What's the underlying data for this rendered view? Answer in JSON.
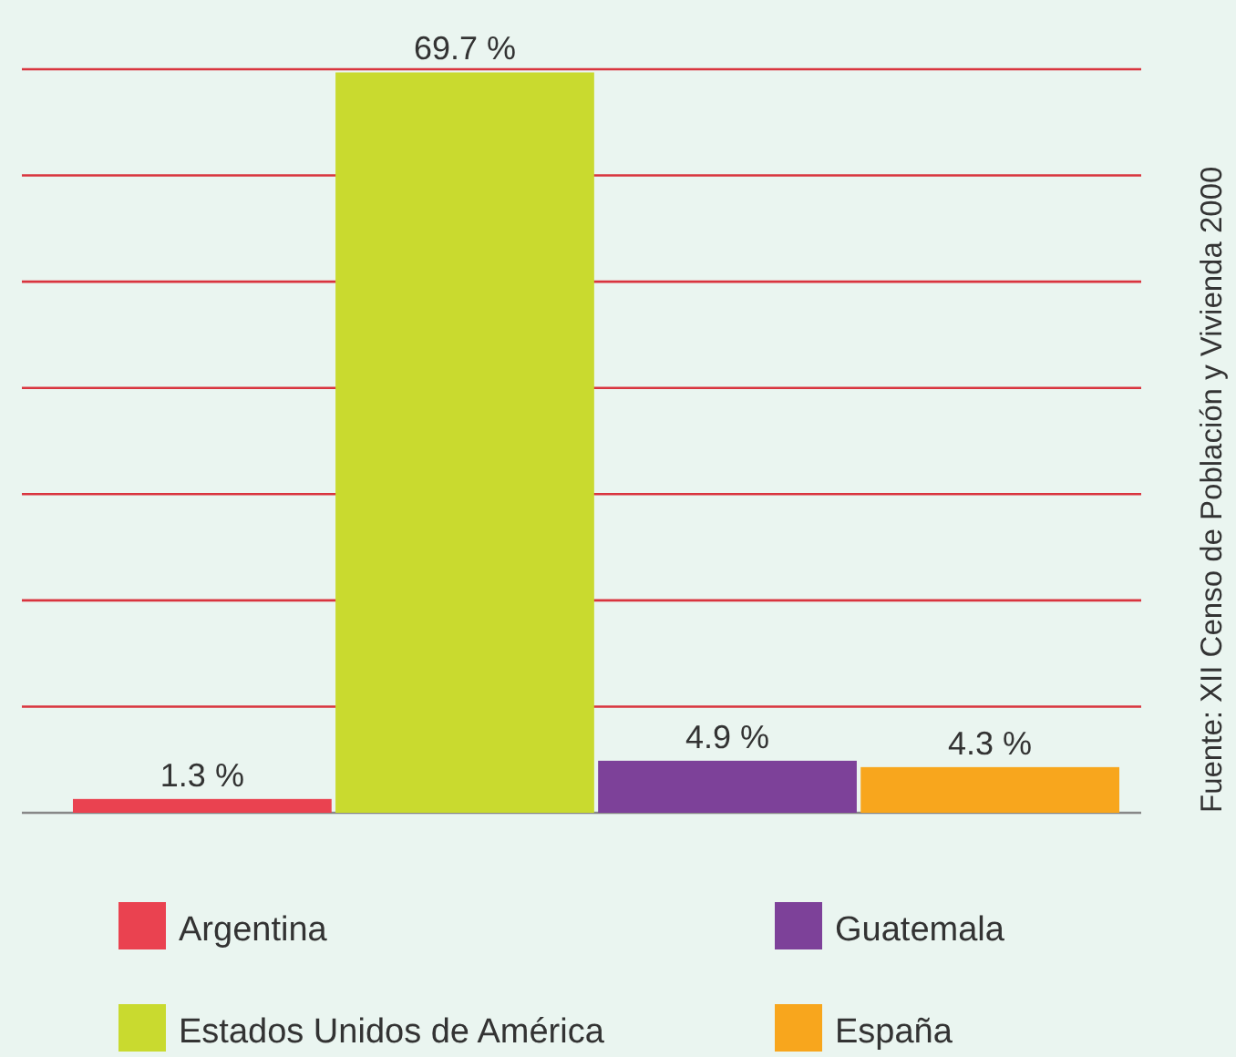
{
  "chart_data": {
    "type": "bar",
    "categories": [
      null
    ],
    "series": [
      {
        "name": "Argentina",
        "color": "#ea4250",
        "values": [
          1.3
        ],
        "value_labels": [
          "1.3 %"
        ]
      },
      {
        "name": "Estados Unidos de América",
        "color": "#c9da2f",
        "values": [
          69.7
        ],
        "value_labels": [
          "69.7 %"
        ]
      },
      {
        "name": "Guatemala",
        "color": "#7d4199",
        "values": [
          4.9
        ],
        "value_labels": [
          "4.9 %"
        ]
      },
      {
        "name": "España",
        "color": "#f8a61d",
        "values": [
          4.3
        ],
        "value_labels": [
          "4.3 %"
        ]
      }
    ],
    "ylim": [
      0,
      70
    ],
    "yticks": [
      {
        "value": 0,
        "label": null
      },
      {
        "value": 10,
        "label": null
      },
      {
        "value": 20,
        "label": null
      },
      {
        "value": 30,
        "label": null
      },
      {
        "value": 40,
        "label": null
      },
      {
        "value": 50,
        "label": null
      },
      {
        "value": 60,
        "label": null
      },
      {
        "value": 70,
        "label": null
      }
    ],
    "tick_labels": false,
    "grid": "y",
    "legend": "bottom",
    "annotations": [
      "Fuente: XII Censo de Población y Vivienda 2000"
    ]
  }
}
